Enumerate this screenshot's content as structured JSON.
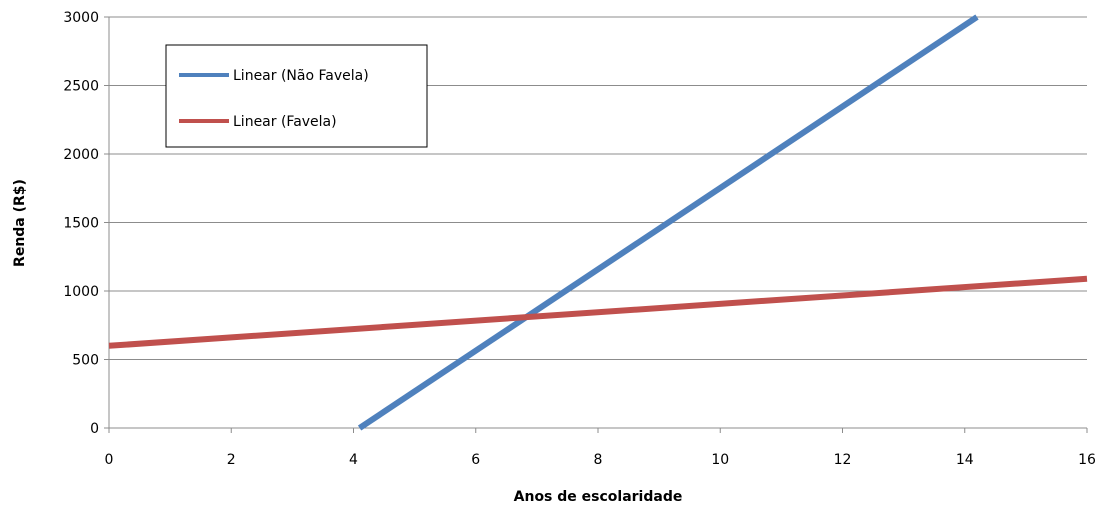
{
  "chart_data": {
    "type": "line",
    "title": "",
    "xlabel": "Anos de escolaridade",
    "ylabel": "Renda (R$)",
    "xlim": [
      0,
      16
    ],
    "ylim": [
      0,
      3000
    ],
    "x_ticks": [
      0,
      2,
      4,
      6,
      8,
      10,
      12,
      14,
      16
    ],
    "y_ticks": [
      0,
      500,
      1000,
      1500,
      2000,
      2500,
      3000
    ],
    "grid": "horizontal",
    "legend_position": "top-left",
    "series": [
      {
        "name": "Linear (Não Favela)",
        "color": "#4f81bd",
        "x": [
          4.1,
          14.2
        ],
        "y": [
          0,
          3000
        ]
      },
      {
        "name": "Linear (Favela)",
        "color": "#c0504d",
        "x": [
          0,
          16
        ],
        "y": [
          600,
          1090
        ]
      }
    ]
  }
}
